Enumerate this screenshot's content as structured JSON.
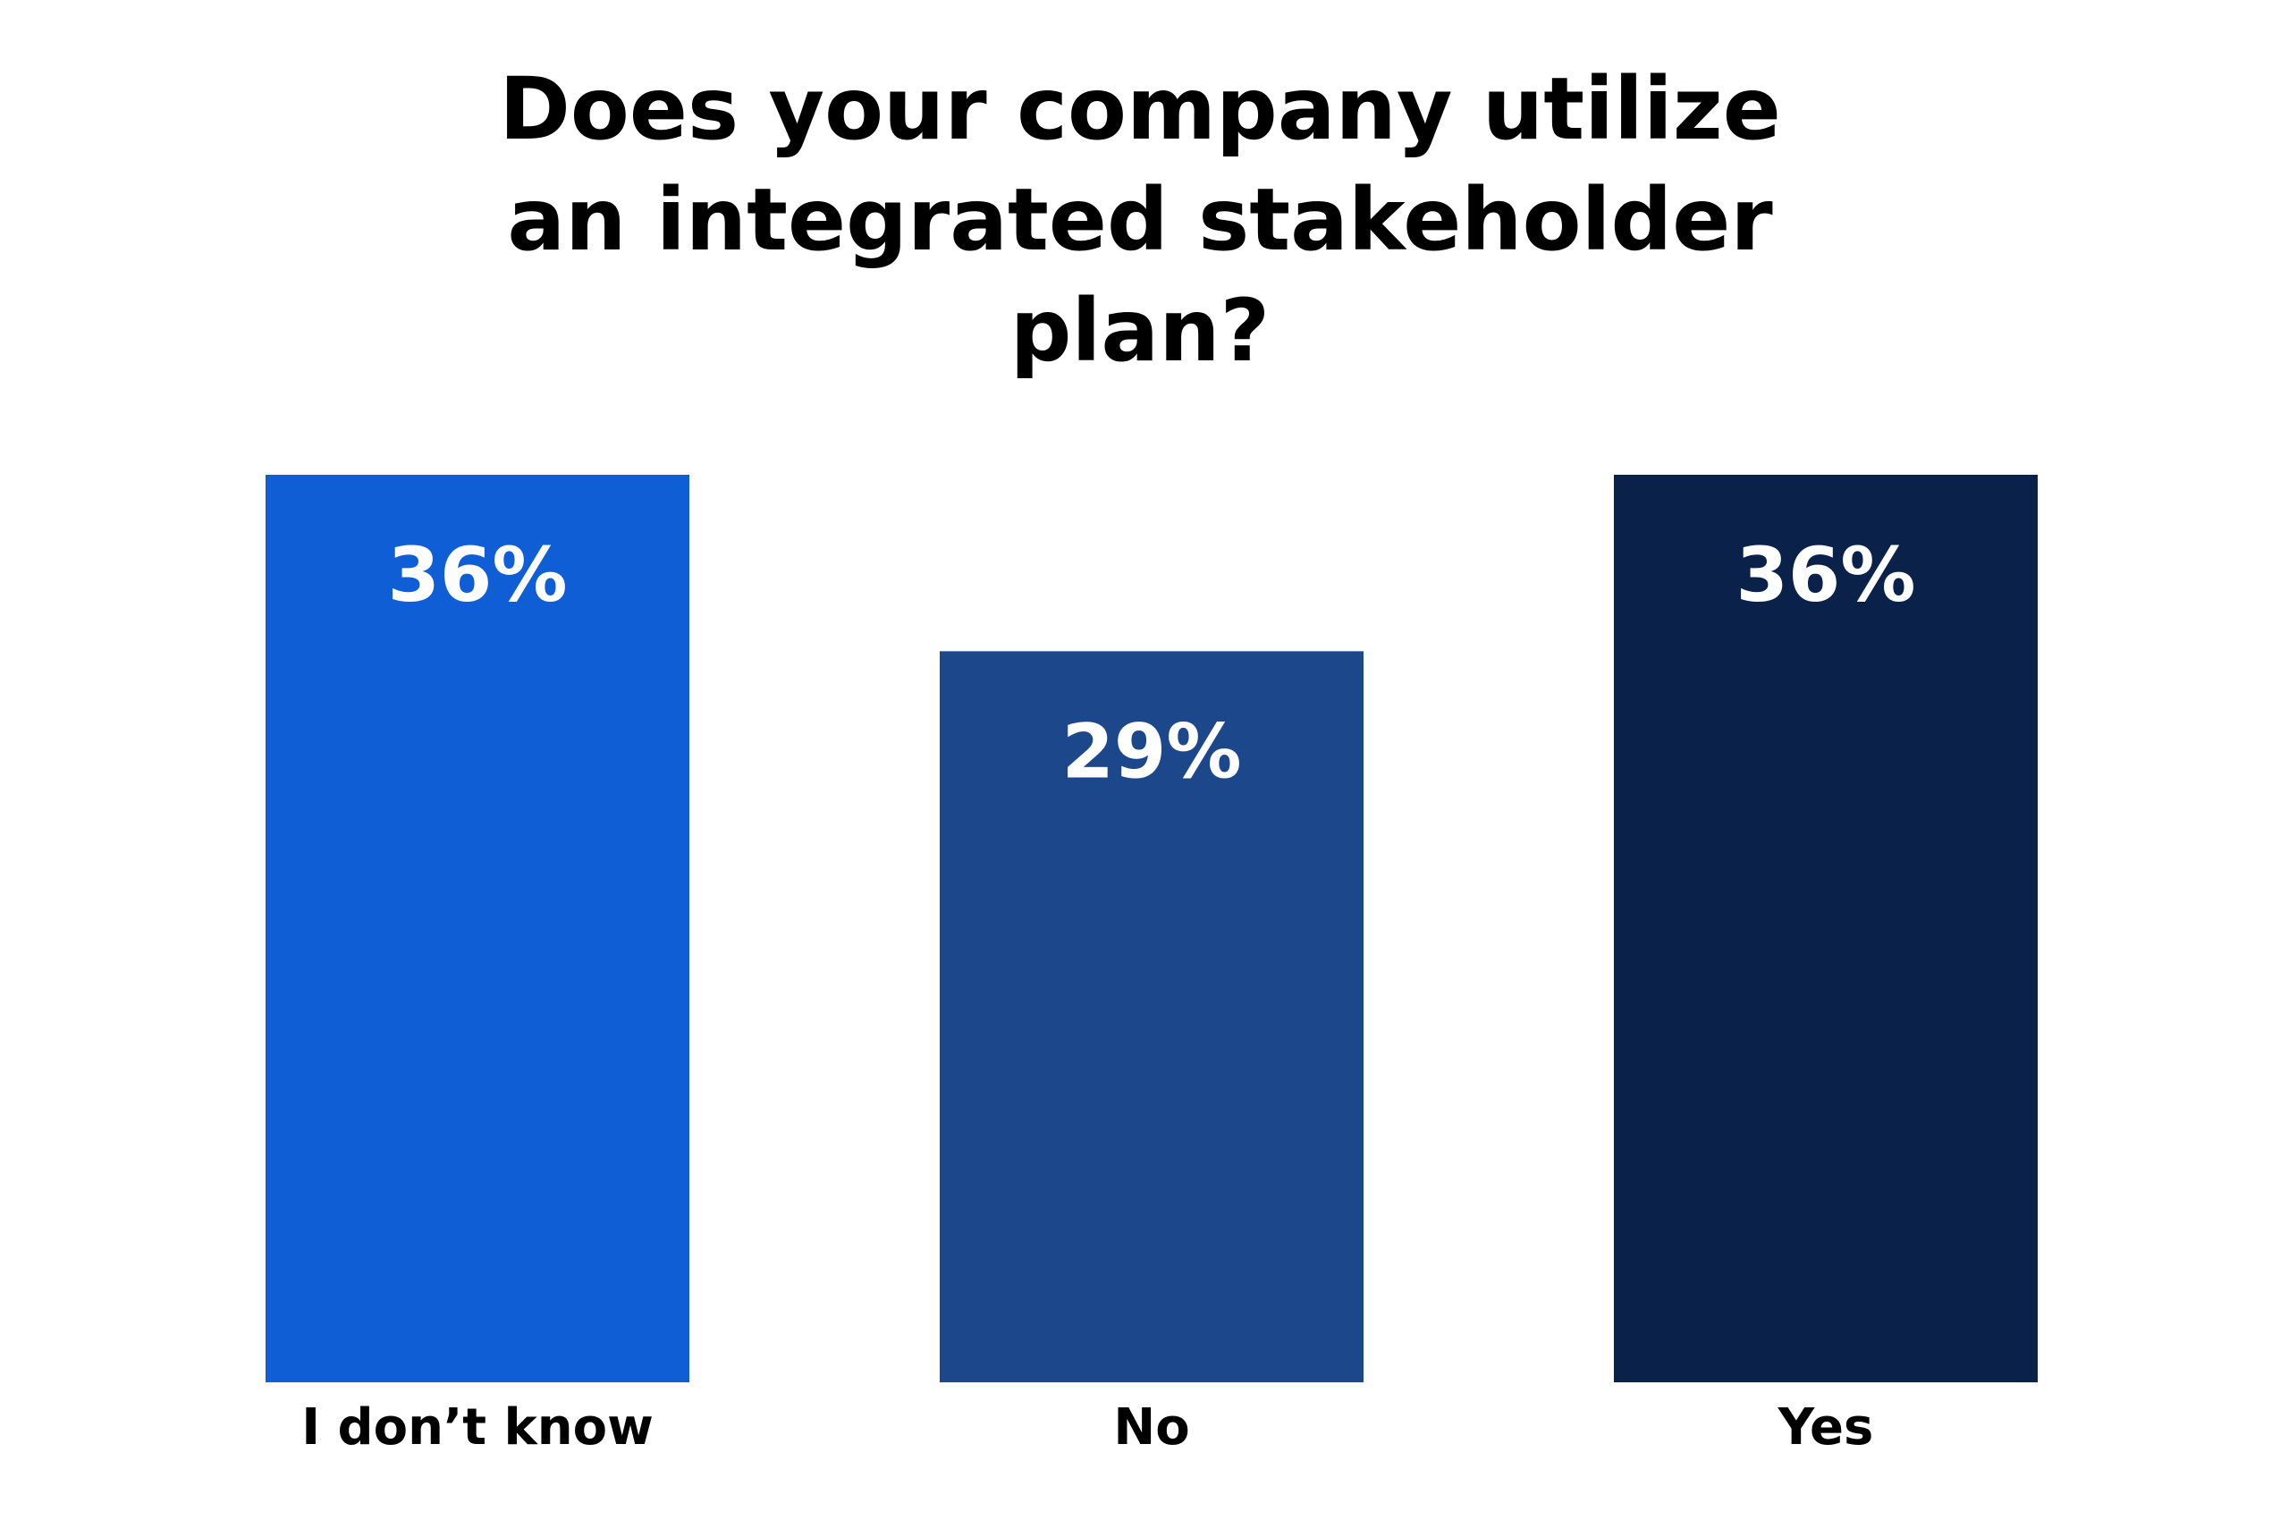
{
  "chart_data": {
    "type": "bar",
    "title": "Does your company utilize an integrated stakeholder plan?",
    "categories": [
      "I don’t know",
      "No",
      "Yes"
    ],
    "values": [
      36,
      29,
      36
    ],
    "value_labels": [
      "36%",
      "29%",
      "36%"
    ],
    "colors": [
      "#0f5ed6",
      "#1c478b",
      "#0a2249"
    ]
  }
}
